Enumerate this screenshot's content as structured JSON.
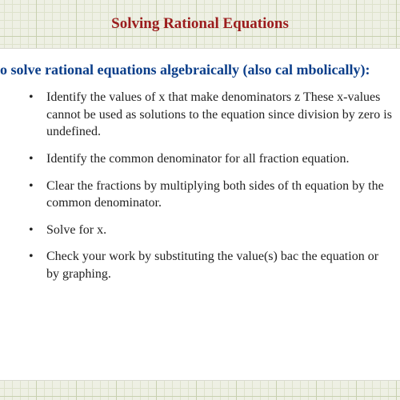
{
  "title": "Solving Rational Equations",
  "lead": "o solve rational equations algebraically (also cal mbolically):",
  "steps": [
    "Identify the values of x that make denominators z These x-values cannot be used as solutions to the equation since division by zero is undefined.",
    "Identify the common denominator for all fraction equation.",
    "Clear the fractions by multiplying both sides of th equation by the common denominator.",
    "Solve for x.",
    "Check your work by substituting the value(s) bac the equation or by graphing."
  ],
  "colors": {
    "title": "#9b1c1c",
    "lead": "#0b3e8a",
    "body_text": "#222222",
    "card_bg": "#ffffff",
    "graph_bg": "#eef0e4",
    "grid_major": "#c8d0b0",
    "grid_minor": "#dde2cc"
  },
  "typography": {
    "title_fontsize": 19,
    "lead_fontsize": 18,
    "body_fontsize": 16,
    "font_family": "Georgia, Times New Roman, serif"
  }
}
